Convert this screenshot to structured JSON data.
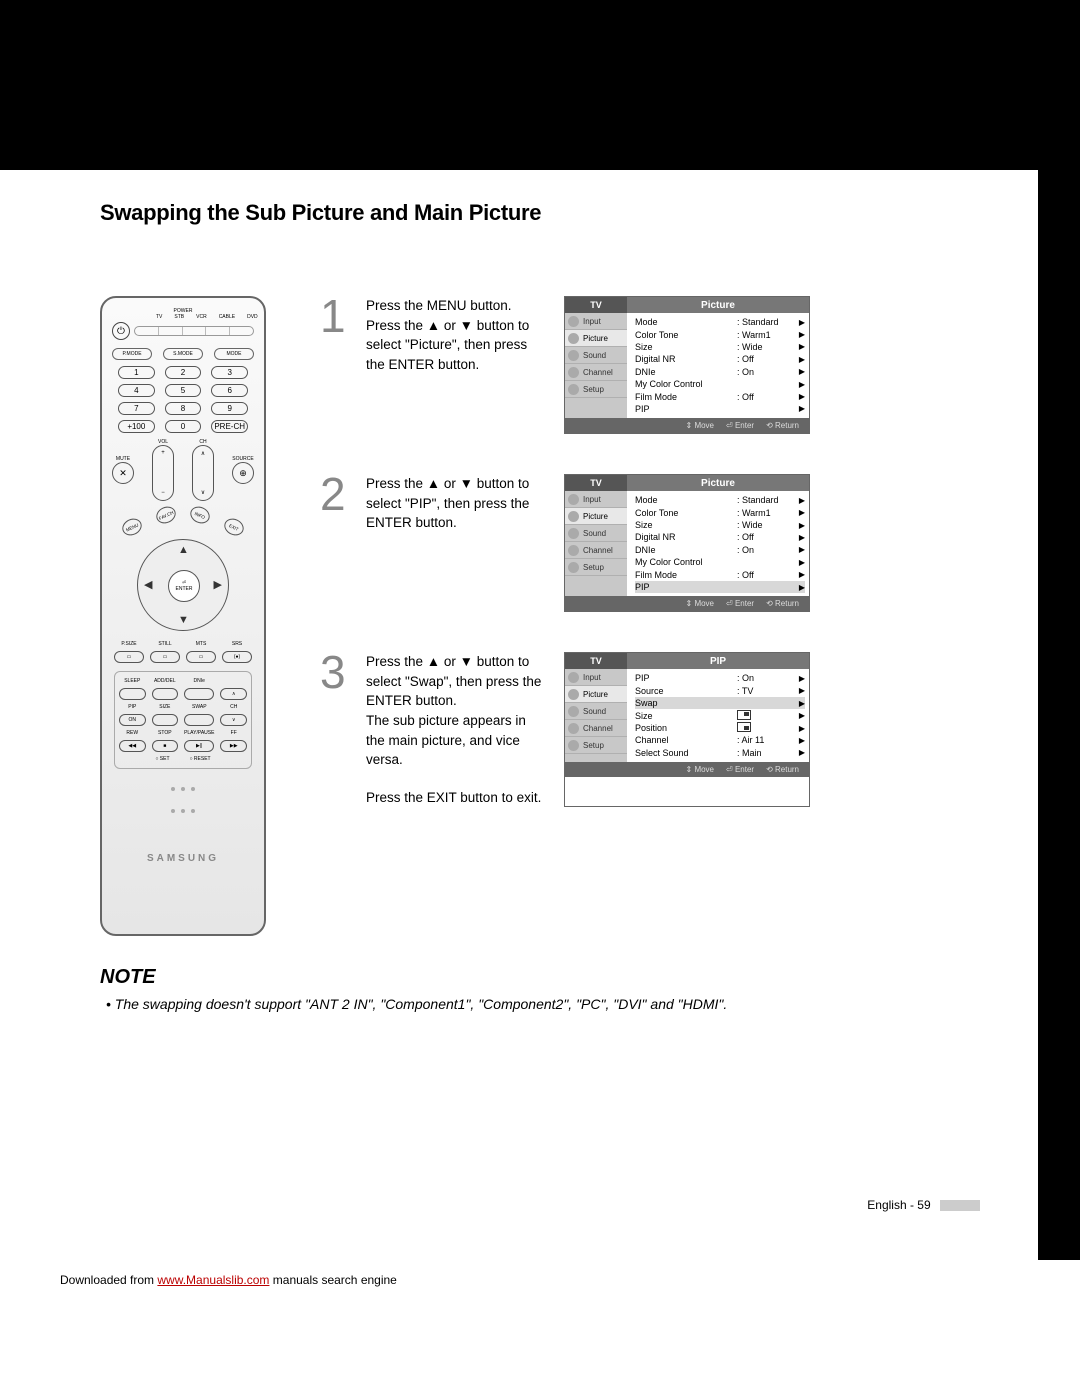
{
  "title": "Swapping the Sub Picture and Main Picture",
  "steps": [
    {
      "num": "1",
      "text": "Press the MENU button. Press the ▲ or ▼ button to select \"Picture\", then press the ENTER button.",
      "osd": {
        "tv": "TV",
        "title": "Picture",
        "side": [
          "Input",
          "Picture",
          "Sound",
          "Channel",
          "Setup"
        ],
        "activeSide": 1,
        "rows": [
          {
            "label": "Mode",
            "value": ": Standard",
            "hl": false
          },
          {
            "label": "Color Tone",
            "value": ": Warm1",
            "hl": false
          },
          {
            "label": "Size",
            "value": ": Wide",
            "hl": false
          },
          {
            "label": "Digital NR",
            "value": ": Off",
            "hl": false
          },
          {
            "label": "DNIe",
            "value": ": On",
            "hl": false
          },
          {
            "label": "My Color Control",
            "value": "",
            "hl": false
          },
          {
            "label": "Film Mode",
            "value": ": Off",
            "hl": false
          },
          {
            "label": "PIP",
            "value": "",
            "hl": false
          }
        ],
        "footer": [
          "⇕ Move",
          "⏎ Enter",
          "⟲ Return"
        ]
      }
    },
    {
      "num": "2",
      "text": "Press the ▲ or ▼ button to select \"PIP\", then press the ENTER button.",
      "osd": {
        "tv": "TV",
        "title": "Picture",
        "side": [
          "Input",
          "Picture",
          "Sound",
          "Channel",
          "Setup"
        ],
        "activeSide": 1,
        "rows": [
          {
            "label": "Mode",
            "value": ": Standard",
            "hl": false
          },
          {
            "label": "Color Tone",
            "value": ": Warm1",
            "hl": false
          },
          {
            "label": "Size",
            "value": ": Wide",
            "hl": false
          },
          {
            "label": "Digital NR",
            "value": ": Off",
            "hl": false
          },
          {
            "label": "DNIe",
            "value": ": On",
            "hl": false
          },
          {
            "label": "My Color Control",
            "value": "",
            "hl": false
          },
          {
            "label": "Film Mode",
            "value": ": Off",
            "hl": false
          },
          {
            "label": "PIP",
            "value": "",
            "hl": true
          }
        ],
        "footer": [
          "⇕ Move",
          "⏎ Enter",
          "⟲ Return"
        ]
      }
    },
    {
      "num": "3",
      "text": "Press the ▲ or ▼ button to select \"Swap\", then press the ENTER button.\nThe sub picture appears in the main picture, and vice versa.",
      "exit": "Press the EXIT button to exit.",
      "osd": {
        "tv": "TV",
        "title": "PIP",
        "side": [
          "Input",
          "Picture",
          "Sound",
          "Channel",
          "Setup"
        ],
        "activeSide": 1,
        "rows": [
          {
            "label": "PIP",
            "value": ": On",
            "hl": false
          },
          {
            "label": "Source",
            "value": ": TV",
            "hl": false
          },
          {
            "label": "Swap",
            "value": "",
            "hl": true
          },
          {
            "label": "Size",
            "value": "icon-tr",
            "hl": false
          },
          {
            "label": "Position",
            "value": "icon-br",
            "hl": false
          },
          {
            "label": "Channel",
            "value": ": Air 11",
            "hl": false
          },
          {
            "label": "Select Sound",
            "value": ": Main",
            "hl": false
          }
        ],
        "footer": [
          "⇕ Move",
          "⏎ Enter",
          "⟲ Return"
        ]
      }
    }
  ],
  "note_heading": "NOTE",
  "note_body": "• The swapping doesn't support \"ANT 2 IN\", \"Component1\", \"Component2\", \"PC\", \"DVI\" and \"HDMI\".",
  "page_foot": "English - 59",
  "download_prefix": "Downloaded from ",
  "download_link": "www.Manualslib.com",
  "download_suffix": " manuals search engine",
  "remote": {
    "power_label": "POWER",
    "dev_labels": [
      "TV",
      "STB",
      "VCR",
      "CABLE",
      "DVD"
    ],
    "mode_row": [
      "P.MODE",
      "S.MODE",
      "MODE"
    ],
    "nums": [
      "1",
      "2",
      "3",
      "4",
      "5",
      "6",
      "7",
      "8",
      "9",
      "+100",
      "0",
      "PRE-CH"
    ],
    "vol": "VOL",
    "ch": "CH",
    "mute": "MUTE",
    "source": "SOURCE",
    "diag": [
      "MENU",
      "FAV.CH",
      "INFO",
      "EXIT"
    ],
    "enter": "ENTER",
    "row_a": [
      "P.SIZE",
      "STILL",
      "MTS",
      "SRS"
    ],
    "box_r1": [
      "SLEEP",
      "ADD/DEL",
      "DNIe",
      ""
    ],
    "box_r2": [
      "PIP",
      "SIZE",
      "SWAP",
      "CH"
    ],
    "box_r2b": [
      "ON",
      "",
      "",
      ""
    ],
    "box_r3": [
      "REW",
      "STOP",
      "PLAY/PAUSE",
      "FF"
    ],
    "box_r3_sym": [
      "◀◀",
      "■",
      "▶||",
      "▶▶"
    ],
    "set": [
      "○ SET",
      "○ RESET"
    ],
    "brand": "SAMSUNG"
  },
  "colors": {
    "black": "#000000",
    "osd_header": "#777777",
    "osd_side": "#c8c8c8",
    "osd_footer": "#666666",
    "grey_num": "#888888"
  }
}
